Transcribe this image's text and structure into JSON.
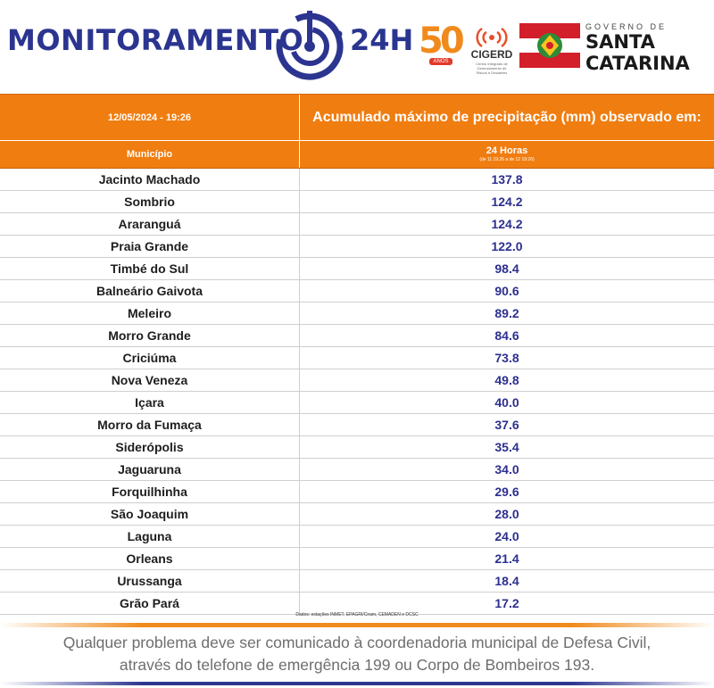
{
  "header": {
    "brand": "MONITORAMENTO",
    "brand_suffix": "24H",
    "logo_50": "50",
    "logo_50_sub": "ANOS",
    "cigerd_label": "CIGERD",
    "cigerd_sub": "Centro Integrado de Gerenciamento de Riscos e Desastres",
    "gov_line1": "GOVERNO DE",
    "gov_line2": "SANTA",
    "gov_line3": "CATARINA",
    "brand_color": "#2b3590",
    "accent_color": "#f07d10"
  },
  "table": {
    "date": "12/05/2024 - 19:26",
    "title": "Acumulado máximo de precipitação (mm) observado em:",
    "col_municipio": "Município",
    "col_period": "24 Horas",
    "col_period_sub": "(de 11 19:26 a de 12 19:26)",
    "rows": [
      {
        "name": "Jacinto Machado",
        "value": "137.8"
      },
      {
        "name": "Sombrio",
        "value": "124.2"
      },
      {
        "name": "Araranguá",
        "value": "124.2"
      },
      {
        "name": "Praia Grande",
        "value": "122.0"
      },
      {
        "name": "Timbé do Sul",
        "value": "98.4"
      },
      {
        "name": "Balneário Gaivota",
        "value": "90.6"
      },
      {
        "name": "Meleiro",
        "value": "89.2"
      },
      {
        "name": "Morro Grande",
        "value": "84.6"
      },
      {
        "name": "Criciúma",
        "value": "73.8"
      },
      {
        "name": "Nova Veneza",
        "value": "49.8"
      },
      {
        "name": "Içara",
        "value": "40.0"
      },
      {
        "name": "Morro da Fumaça",
        "value": "37.6"
      },
      {
        "name": "Siderópolis",
        "value": "35.4"
      },
      {
        "name": "Jaguaruna",
        "value": "34.0"
      },
      {
        "name": "Forquilhinha",
        "value": "29.6"
      },
      {
        "name": "São Joaquim",
        "value": "28.0"
      },
      {
        "name": "Laguna",
        "value": "24.0"
      },
      {
        "name": "Orleans",
        "value": "21.4"
      },
      {
        "name": "Urussanga",
        "value": "18.4"
      },
      {
        "name": "Grão Pará",
        "value": "17.2"
      }
    ],
    "source": "Dados: estações INMET, EPAGRI/Ciram, CEMADEN e DCSC"
  },
  "footer": {
    "notice_line1": "Qualquer problema deve ser comunicado à coordenadoria municipal de Defesa Civil,",
    "notice_line2": "através do telefone de emergência 199 ou Corpo de Bombeiros 193."
  }
}
